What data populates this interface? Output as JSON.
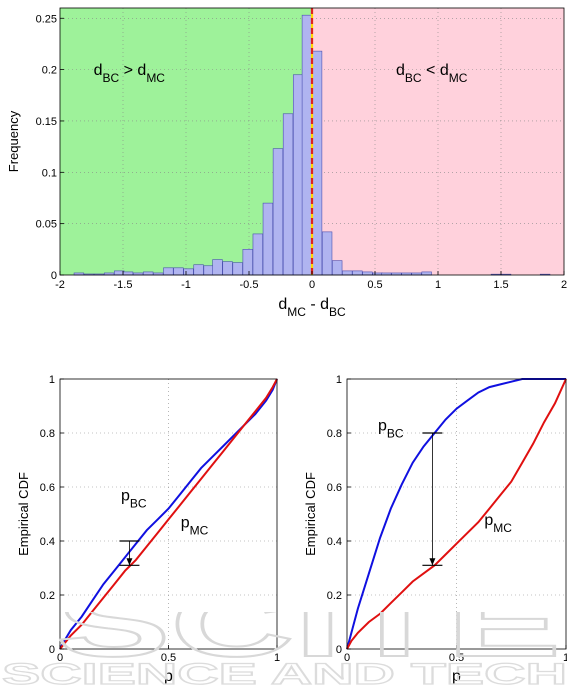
{
  "chart_data": [
    {
      "type": "bar",
      "ylabel": "Frequency",
      "xlabel": "d_MC - d_BC",
      "xlim": [
        -2,
        2
      ],
      "ylim": [
        0,
        0.26
      ],
      "xticks": [
        -2,
        -1.5,
        -1,
        -0.5,
        0,
        0.5,
        1,
        1.5,
        2
      ],
      "xtick_labels": [
        "-2",
        "-1.5",
        "-1",
        "-0.5",
        "0",
        "0.5",
        "1",
        "1.5",
        "2"
      ],
      "yticks": [
        0,
        0.05,
        0.1,
        0.15,
        0.2,
        0.25
      ],
      "ytick_labels": [
        "0",
        "0.05",
        "0.1",
        "0.15",
        "0.2",
        "0.25"
      ],
      "grid": true,
      "regions": [
        {
          "label": "d_BC > d_MC",
          "from": -2,
          "to": 0,
          "color": "#9ef29a"
        },
        {
          "label": "d_BC < d_MC",
          "from": 0,
          "to": 2,
          "color": "#ffd1dc"
        }
      ],
      "threshold": {
        "x": 0,
        "colors": [
          "#ffd700",
          "#e02020"
        ],
        "style": "dashed"
      },
      "bar_width": 0.077,
      "bar_color": "#b0b4f0",
      "bars": [
        {
          "x": -1.85,
          "y": 0.002
        },
        {
          "x": -1.77,
          "y": 0.001
        },
        {
          "x": -1.69,
          "y": 0.001
        },
        {
          "x": -1.61,
          "y": 0.002
        },
        {
          "x": -1.53,
          "y": 0.004
        },
        {
          "x": -1.46,
          "y": 0.003
        },
        {
          "x": -1.38,
          "y": 0.002
        },
        {
          "x": -1.3,
          "y": 0.003
        },
        {
          "x": -1.22,
          "y": 0.002
        },
        {
          "x": -1.14,
          "y": 0.007
        },
        {
          "x": -1.06,
          "y": 0.007
        },
        {
          "x": -0.98,
          "y": 0.006
        },
        {
          "x": -0.9,
          "y": 0.01
        },
        {
          "x": -0.82,
          "y": 0.009
        },
        {
          "x": -0.75,
          "y": 0.015
        },
        {
          "x": -0.67,
          "y": 0.013
        },
        {
          "x": -0.59,
          "y": 0.012
        },
        {
          "x": -0.51,
          "y": 0.025
        },
        {
          "x": -0.43,
          "y": 0.04
        },
        {
          "x": -0.35,
          "y": 0.07
        },
        {
          "x": -0.27,
          "y": 0.123
        },
        {
          "x": -0.19,
          "y": 0.157
        },
        {
          "x": -0.11,
          "y": 0.195
        },
        {
          "x": -0.04,
          "y": 0.253
        },
        {
          "x": 0.04,
          "y": 0.218
        },
        {
          "x": 0.12,
          "y": 0.042
        },
        {
          "x": 0.2,
          "y": 0.014
        },
        {
          "x": 0.28,
          "y": 0.004
        },
        {
          "x": 0.36,
          "y": 0.004
        },
        {
          "x": 0.44,
          "y": 0.003
        },
        {
          "x": 0.52,
          "y": 0.002
        },
        {
          "x": 0.59,
          "y": 0.002
        },
        {
          "x": 0.67,
          "y": 0.002
        },
        {
          "x": 0.75,
          "y": 0.002
        },
        {
          "x": 0.83,
          "y": 0.002
        },
        {
          "x": 0.91,
          "y": 0.003
        },
        {
          "x": 1.46,
          "y": 0.0008
        },
        {
          "x": 1.54,
          "y": 0.0008
        },
        {
          "x": 1.85,
          "y": 0.0008
        }
      ]
    },
    {
      "type": "line",
      "ylabel": "Empirical CDF",
      "xlabel": "p",
      "xlim": [
        0,
        1
      ],
      "ylim": [
        0,
        1
      ],
      "xticks": [
        0,
        0.5,
        1
      ],
      "xtick_labels": [
        "0",
        "0.5",
        "1"
      ],
      "yticks": [
        0,
        0.2,
        0.4,
        0.6,
        0.8,
        1
      ],
      "ytick_labels": [
        "0",
        "0.2",
        "0.4",
        "0.6",
        "0.8",
        "1"
      ],
      "grid": true,
      "series": [
        {
          "name": "p_BC",
          "color": "#1010e0",
          "x": [
            0,
            0.02,
            0.05,
            0.1,
            0.15,
            0.2,
            0.25,
            0.3,
            0.35,
            0.4,
            0.45,
            0.5,
            0.55,
            0.6,
            0.65,
            0.7,
            0.75,
            0.8,
            0.85,
            0.9,
            0.95,
            0.98,
            1
          ],
          "y": [
            0,
            0.03,
            0.07,
            0.12,
            0.18,
            0.24,
            0.29,
            0.34,
            0.39,
            0.44,
            0.48,
            0.52,
            0.57,
            0.62,
            0.67,
            0.71,
            0.75,
            0.79,
            0.83,
            0.87,
            0.92,
            0.96,
            1
          ]
        },
        {
          "name": "p_MC",
          "color": "#e01010",
          "x": [
            0,
            0.02,
            0.05,
            0.1,
            0.15,
            0.2,
            0.25,
            0.3,
            0.35,
            0.4,
            0.45,
            0.5,
            0.55,
            0.6,
            0.65,
            0.7,
            0.75,
            0.8,
            0.85,
            0.9,
            0.95,
            0.98,
            1
          ],
          "y": [
            0,
            0.02,
            0.05,
            0.09,
            0.14,
            0.19,
            0.24,
            0.29,
            0.33,
            0.38,
            0.43,
            0.48,
            0.53,
            0.58,
            0.63,
            0.68,
            0.73,
            0.78,
            0.83,
            0.88,
            0.93,
            0.97,
            1
          ]
        }
      ],
      "marker": {
        "x": 0.32,
        "y_from": 0.31,
        "y_to": 0.4
      }
    },
    {
      "type": "line",
      "ylabel": "Empirical CDF",
      "xlabel": "p",
      "xlim": [
        0,
        1
      ],
      "ylim": [
        0,
        1
      ],
      "xticks": [
        0,
        0.5,
        1
      ],
      "xtick_labels": [
        "0",
        "0.5",
        "1"
      ],
      "yticks": [
        0,
        0.2,
        0.4,
        0.6,
        0.8,
        1
      ],
      "ytick_labels": [
        "0",
        "0.2",
        "0.4",
        "0.6",
        "0.8",
        "1"
      ],
      "grid": true,
      "series": [
        {
          "name": "p_BC",
          "color": "#1010e0",
          "x": [
            0,
            0.02,
            0.05,
            0.1,
            0.15,
            0.2,
            0.25,
            0.3,
            0.35,
            0.4,
            0.45,
            0.5,
            0.55,
            0.6,
            0.65,
            0.7,
            0.75,
            0.8,
            0.85,
            0.9,
            1
          ],
          "y": [
            0,
            0.06,
            0.15,
            0.28,
            0.41,
            0.52,
            0.61,
            0.69,
            0.75,
            0.8,
            0.85,
            0.89,
            0.92,
            0.95,
            0.97,
            0.98,
            0.99,
            1,
            1,
            1,
            1
          ]
        },
        {
          "name": "p_MC",
          "color": "#e01010",
          "x": [
            0,
            0.02,
            0.05,
            0.1,
            0.15,
            0.2,
            0.25,
            0.3,
            0.35,
            0.4,
            0.45,
            0.5,
            0.55,
            0.6,
            0.65,
            0.7,
            0.75,
            0.8,
            0.85,
            0.9,
            0.95,
            1
          ],
          "y": [
            0,
            0.03,
            0.06,
            0.1,
            0.13,
            0.17,
            0.21,
            0.25,
            0.28,
            0.31,
            0.35,
            0.39,
            0.43,
            0.47,
            0.52,
            0.57,
            0.62,
            0.69,
            0.76,
            0.84,
            0.91,
            1
          ]
        }
      ],
      "marker": {
        "x": 0.39,
        "y_from": 0.31,
        "y_to": 0.8
      }
    }
  ],
  "watermark": {
    "line1": "SCITE",
    "line2": "SCIENCE AND TECH"
  }
}
